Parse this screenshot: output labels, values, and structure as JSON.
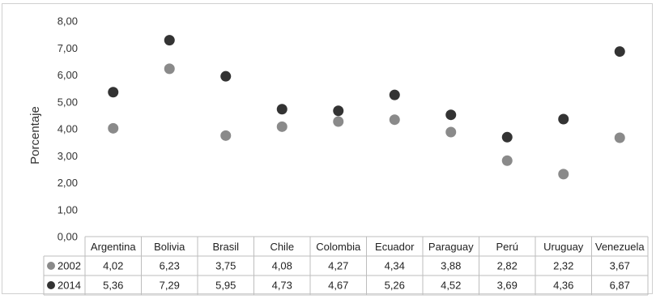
{
  "chart_data": {
    "type": "scatter",
    "title": "",
    "xlabel": "",
    "ylabel": "Porcentaje",
    "ylim": [
      0,
      8
    ],
    "yticks": [
      "0,00",
      "1,00",
      "2,00",
      "3,00",
      "4,00",
      "5,00",
      "6,00",
      "7,00",
      "8,00"
    ],
    "categories": [
      "Argentina",
      "Bolivia",
      "Brasil",
      "Chile",
      "Colombia",
      "Ecuador",
      "Paraguay",
      "Perú",
      "Uruguay",
      "Venezuela"
    ],
    "series": [
      {
        "name": "2002",
        "color": "#8a8a8a",
        "values": [
          4.02,
          6.23,
          3.75,
          4.08,
          4.27,
          4.34,
          3.88,
          2.82,
          2.32,
          3.67
        ],
        "labels": [
          "4,02",
          "6,23",
          "3,75",
          "4,08",
          "4,27",
          "4,34",
          "3,88",
          "2,82",
          "2,32",
          "3,67"
        ]
      },
      {
        "name": "2014",
        "color": "#333333",
        "values": [
          5.36,
          7.29,
          5.95,
          4.73,
          4.67,
          5.26,
          4.52,
          3.69,
          4.36,
          6.87
        ],
        "labels": [
          "5,36",
          "7,29",
          "5,95",
          "4,73",
          "4,67",
          "5,26",
          "4,52",
          "3,69",
          "4,36",
          "6,87"
        ]
      }
    ],
    "grid": false,
    "legend": "data-table"
  }
}
